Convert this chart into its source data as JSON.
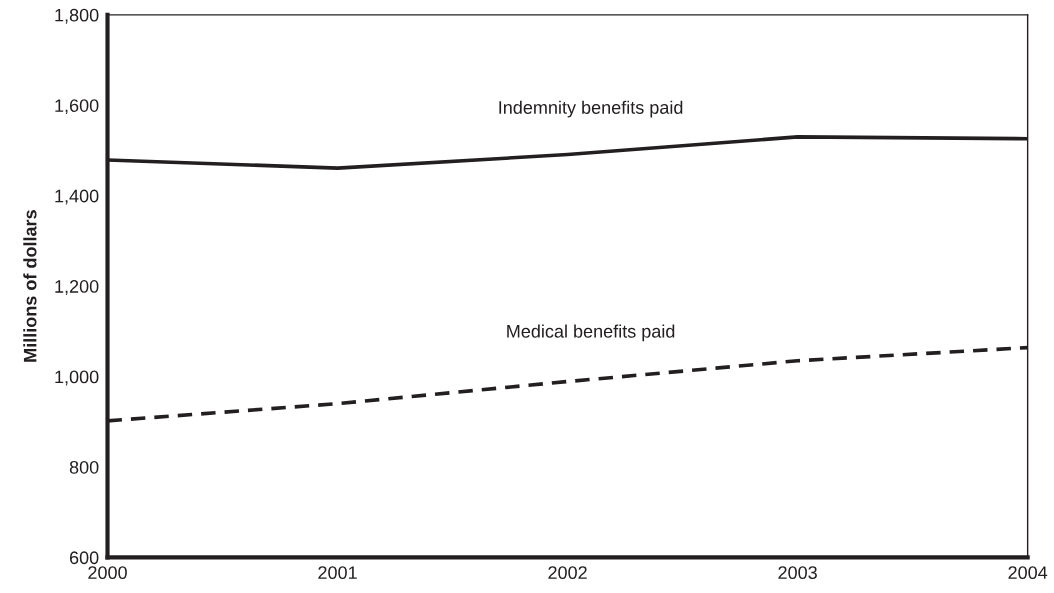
{
  "chart_data": {
    "type": "line",
    "ylabel": "Millions of dollars",
    "x": [
      2000,
      2001,
      2002,
      2003,
      2004
    ],
    "series": [
      {
        "name": "Indemnity benefits paid",
        "color": "#231f20",
        "values": [
          1479,
          1461,
          1491,
          1530,
          1526
        ],
        "line_style": "solid"
      },
      {
        "name": "Medical benefits paid",
        "color": "#231f20",
        "values": [
          902,
          940,
          989,
          1035,
          1064
        ],
        "line_style": "dashed"
      }
    ],
    "xlim": [
      2000,
      2004
    ],
    "xticks": [
      2000,
      2001,
      2002,
      2003,
      2004
    ],
    "ylim": [
      600,
      1800
    ],
    "yticks": [
      {
        "value": 600,
        "label": "600"
      },
      {
        "value": 800,
        "label": "800"
      },
      {
        "value": 1000,
        "label": "1,000"
      },
      {
        "value": 1200,
        "label": "1,200"
      },
      {
        "value": 1400,
        "label": "1,400"
      },
      {
        "value": 1600,
        "label": "1,600"
      },
      {
        "value": 1800,
        "label": "1,800"
      }
    ],
    "grid": false,
    "legend": false,
    "marker": "none"
  }
}
